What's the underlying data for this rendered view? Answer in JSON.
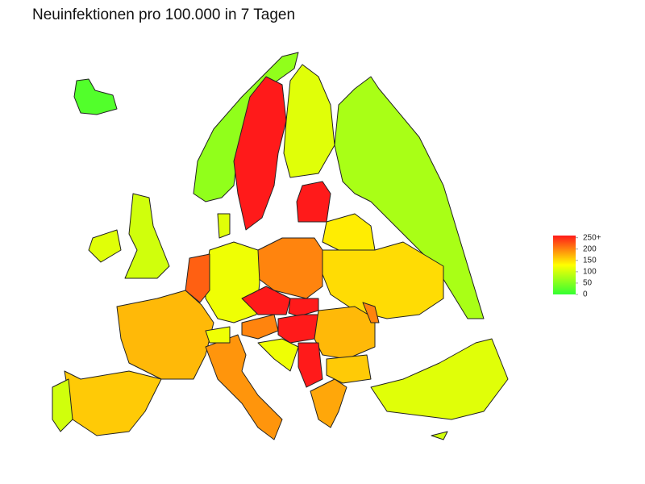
{
  "chart_data": {
    "type": "choropleth",
    "title": "Neuinfektionen pro 100.000 in 7 Tagen",
    "values": [
      20,
      60,
      270,
      110,
      75,
      260,
      140,
      150,
      200,
      120,
      110,
      220,
      170,
      160,
      100,
      100,
      110,
      190,
      120,
      200,
      280,
      270,
      280,
      170,
      200,
      260,
      120,
      160,
      180,
      110,
      100
    ],
    "colors": [
      "#33ff33",
      "#ffff00",
      "#ff1a1a"
    ],
    "ylim": [
      0,
      260
    ],
    "yticks": [
      {
        "value": 250,
        "label": "250+"
      },
      200,
      150,
      100,
      50,
      0
    ]
  }
}
